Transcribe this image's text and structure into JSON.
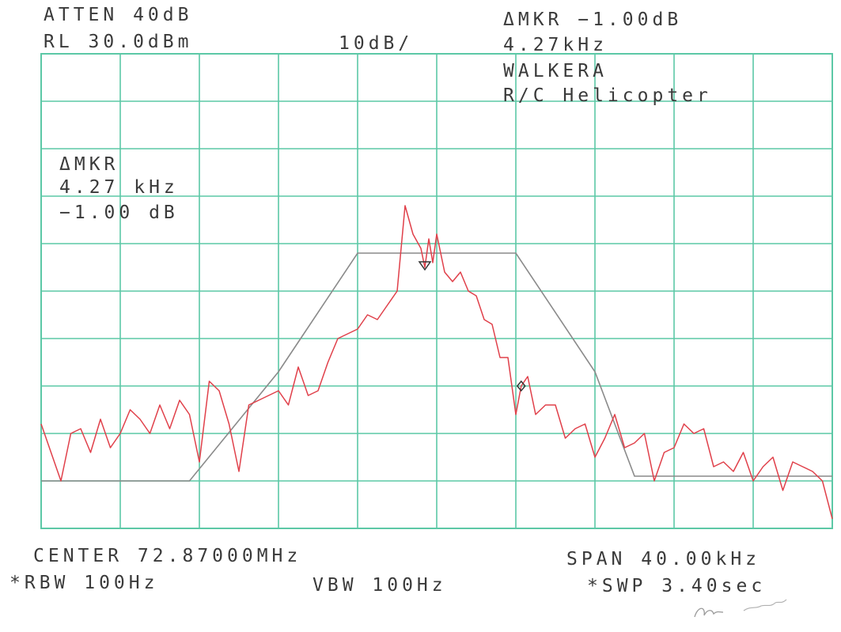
{
  "header": {
    "atten": "ATTEN 40dB",
    "ref_level": "RL 30.0dBm",
    "scale": "10dB/",
    "delta_marker": "ΔMKR −1.00dB",
    "delta_freq": "4.27kHz",
    "device_line1": "WALKERA",
    "device_line2": "R/C Helicopter"
  },
  "marker_box": {
    "label": "ΔMKR",
    "freq": "4.27 kHz",
    "level": "−1.00 dB"
  },
  "footer": {
    "center": "CENTER 72.87000MHz",
    "span": "SPAN 40.00kHz",
    "rbw": "*RBW 100Hz",
    "vbw": "VBW 100Hz",
    "sweep": "*SWP 3.40sec"
  },
  "colors": {
    "grid": "#5cc8a6",
    "trace": "#e0404a",
    "mask": "#8a8a8a",
    "text": "#3a3a3a"
  },
  "chart_data": {
    "type": "line",
    "title": "",
    "xlabel": "",
    "ylabel": "",
    "x_unit": "kHz offset from center 72.87000 MHz",
    "y_unit": "dB",
    "xlim": [
      -20,
      20
    ],
    "ylim": [
      -70,
      30
    ],
    "grid": true,
    "series": [
      {
        "role": "spectrum",
        "x": [
          -20,
          -19.5,
          -19,
          -18.5,
          -18,
          -17.5,
          -17,
          -16.5,
          -16,
          -15.5,
          -15,
          -14.5,
          -14,
          -13.5,
          -13,
          -12.5,
          -12,
          -11.5,
          -11,
          -10.5,
          -10,
          -9.5,
          -9,
          -8.5,
          -8,
          -7.5,
          -7,
          -6.5,
          -6,
          -5.5,
          -5,
          -4.5,
          -4,
          -3.5,
          -3,
          -2.5,
          -2,
          -1.6,
          -1.2,
          -0.8,
          -0.6,
          -0.4,
          -0.2,
          0,
          0.4,
          0.8,
          1.2,
          1.6,
          2,
          2.4,
          2.8,
          3.2,
          3.6,
          4,
          4.27,
          4.6,
          5,
          5.5,
          6,
          6.5,
          7,
          7.5,
          8,
          8.5,
          9,
          9.5,
          10,
          10.5,
          11,
          11.5,
          12,
          12.5,
          13,
          13.5,
          14,
          14.5,
          15,
          15.5,
          16,
          16.5,
          17,
          17.5,
          18,
          18.5,
          19,
          19.5,
          20
        ],
        "y": [
          -48,
          -54,
          -60,
          -50,
          -49,
          -54,
          -47,
          -53,
          -50,
          -45,
          -47,
          -50,
          -44,
          -49,
          -43,
          -46,
          -56,
          -39,
          -41,
          -48,
          -58,
          -44,
          -43,
          -42,
          -41,
          -44,
          -36,
          -42,
          -41,
          -35,
          -30,
          -29,
          -28,
          -25,
          -26,
          -23,
          -20,
          -2,
          -8,
          -11,
          -15,
          -9,
          -14,
          -8,
          -16,
          -18,
          -16,
          -20,
          -21,
          -26,
          -27,
          -34,
          -34,
          -46,
          -40,
          -38,
          -46,
          -44,
          -44,
          -51,
          -49,
          -48,
          -55,
          -51,
          -46,
          -53,
          -52,
          -50,
          -60,
          -54,
          -53,
          -48,
          -50,
          -49,
          -57,
          -56,
          -58,
          -54,
          -60,
          -57,
          -55,
          -62,
          -56,
          -57,
          -58,
          -60,
          -68
        ]
      },
      {
        "role": "limit-mask",
        "x": [
          -20,
          -12.5,
          -12.5,
          -8,
          -8,
          -4,
          -4,
          4,
          4,
          8,
          8,
          10,
          10,
          20
        ],
        "y": [
          -60,
          -60,
          -60,
          -37,
          -37,
          -12,
          -12,
          -12,
          -12,
          -37,
          -37,
          -59,
          -59,
          -59
        ]
      }
    ]
  }
}
